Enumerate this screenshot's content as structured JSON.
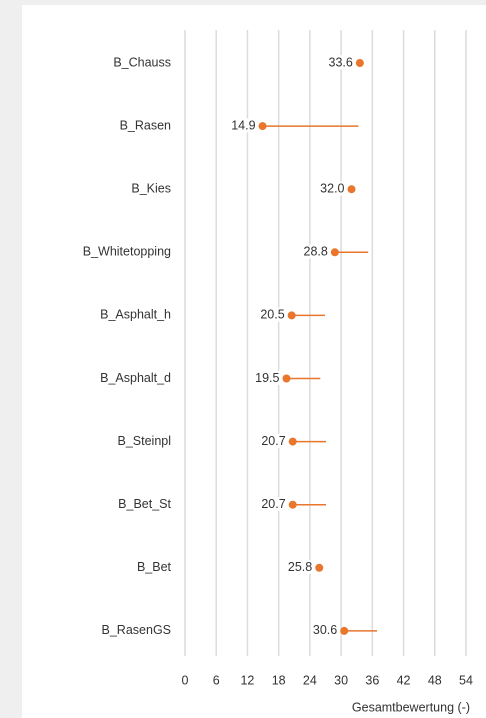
{
  "chart_data": {
    "type": "dot_errorbar",
    "categories": [
      "B_Chauss",
      "B_Rasen",
      "B_Kies",
      "B_Whitetopping",
      "B_Asphalt_h",
      "B_Asphalt_d",
      "B_Steinpl",
      "B_Bet_St",
      "B_Bet",
      "B_RasenGS"
    ],
    "values": [
      33.6,
      14.9,
      32.0,
      28.8,
      20.5,
      19.5,
      20.7,
      20.7,
      25.8,
      30.6
    ],
    "value_labels": [
      "33.6",
      "14.9",
      "32.0",
      "28.8",
      "20.5",
      "19.5",
      "20.7",
      "20.7",
      "25.8",
      "30.6"
    ],
    "error_upper": [
      null,
      18.4,
      null,
      6.4,
      6.4,
      6.5,
      6.4,
      6.4,
      null,
      6.3
    ],
    "color": "#e8762c",
    "xlabel": "Gesamtbewertung (-)",
    "xlim": [
      0,
      54
    ],
    "xticks": [
      0,
      6,
      12,
      18,
      24,
      30,
      36,
      42,
      48,
      54
    ],
    "grid": true
  }
}
